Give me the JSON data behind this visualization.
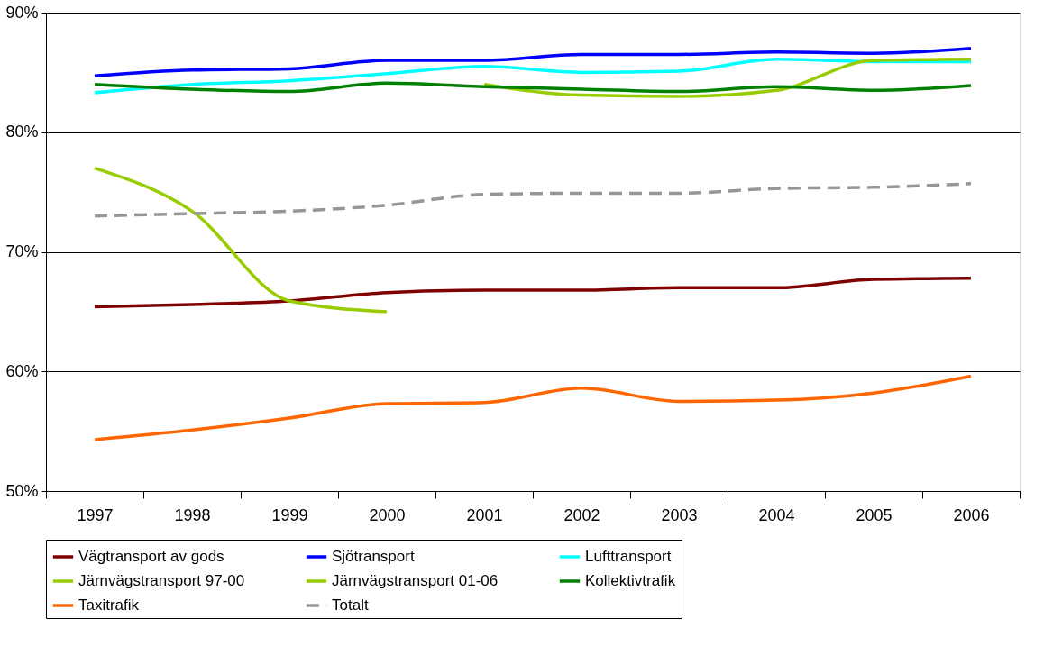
{
  "chart_data": {
    "type": "line",
    "categories": [
      "1997",
      "1998",
      "1999",
      "2000",
      "2001",
      "2002",
      "2003",
      "2004",
      "2005",
      "2006"
    ],
    "ylim": [
      50,
      90
    ],
    "yticks": [
      {
        "value": 50,
        "label": "50%"
      },
      {
        "value": 60,
        "label": "60%"
      },
      {
        "value": 70,
        "label": "70%"
      },
      {
        "value": 80,
        "label": "80%"
      },
      {
        "value": 90,
        "label": "90%"
      }
    ],
    "grid": "y",
    "legend": "bottom",
    "series": [
      {
        "name": "Vägtransport av gods",
        "color": "#800000",
        "values": [
          65.4,
          65.6,
          65.9,
          66.6,
          66.8,
          66.8,
          67.0,
          67.0,
          67.7,
          67.8
        ]
      },
      {
        "name": "Sjötransport",
        "color": "#0000ff",
        "values": [
          84.7,
          85.2,
          85.3,
          86.0,
          86.0,
          86.5,
          86.5,
          86.7,
          86.6,
          87.0
        ]
      },
      {
        "name": "Lufttransport",
        "color": "#00ffff",
        "values": [
          83.3,
          84.0,
          84.3,
          84.9,
          85.5,
          85.0,
          85.1,
          86.1,
          85.9,
          85.9
        ]
      },
      {
        "name": "Järnvägstransport 97-00",
        "color": "#99cc00",
        "values": [
          77.0,
          73.4,
          65.9,
          65.0,
          null,
          null,
          null,
          null,
          null,
          null
        ]
      },
      {
        "name": "Järnvägstransport 01-06",
        "color": "#99cc00",
        "values": [
          null,
          null,
          null,
          null,
          84.0,
          83.1,
          83.0,
          83.5,
          86.0,
          86.1
        ]
      },
      {
        "name": "Kollektivtrafik",
        "color": "#008000",
        "values": [
          84.0,
          83.6,
          83.4,
          84.1,
          83.8,
          83.6,
          83.4,
          83.8,
          83.5,
          83.9
        ]
      },
      {
        "name": "Taxitrafik",
        "color": "#ff6600",
        "values": [
          54.3,
          55.1,
          56.1,
          57.3,
          57.4,
          58.6,
          57.5,
          57.6,
          58.2,
          59.6
        ]
      },
      {
        "name": "Totalt",
        "color": "#969696",
        "line_style": "dashed",
        "values": [
          73.0,
          73.2,
          73.4,
          73.9,
          74.8,
          74.9,
          74.9,
          75.3,
          75.4,
          75.7
        ]
      }
    ]
  }
}
